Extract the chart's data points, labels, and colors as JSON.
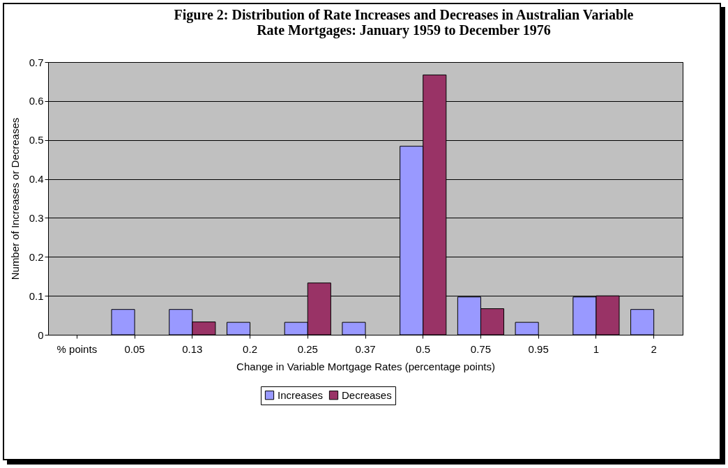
{
  "chart_data": {
    "type": "bar",
    "title": "Figure 2: Distribution of Rate Increases and Decreases in Australian Variable\nRate Mortgages: January 1959 to December 1976",
    "xlabel": "Change in Variable Mortgage Rates (percentage points)",
    "ylabel": "Number of Increases or Decreases",
    "categories": [
      "% points",
      "0.05",
      "0.13",
      "0.2",
      "0.25",
      "0.37",
      "0.5",
      "0.75",
      "0.95",
      "1",
      "2"
    ],
    "series": [
      {
        "name": "Increases",
        "color": "#9999ff",
        "values": [
          null,
          0.065,
          0.065,
          0.032,
          0.032,
          0.032,
          0.484,
          0.097,
          0.032,
          0.097,
          0.065
        ]
      },
      {
        "name": "Decreases",
        "color": "#993366",
        "values": [
          null,
          null,
          0.033,
          null,
          0.133,
          null,
          0.667,
          0.067,
          null,
          0.1,
          null
        ]
      }
    ],
    "ylim": [
      0,
      0.7
    ],
    "yticks": [
      0,
      0.1,
      0.2,
      0.3,
      0.4,
      0.5,
      0.6,
      0.7
    ],
    "grid": "y",
    "legend": "bottom"
  }
}
